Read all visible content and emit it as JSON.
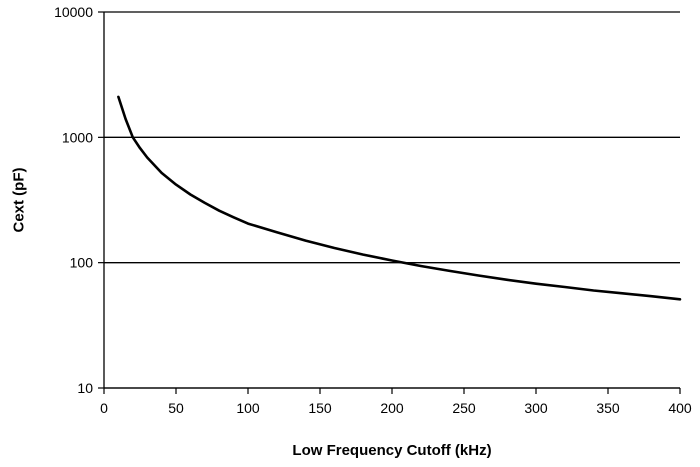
{
  "chart_data": {
    "type": "line",
    "title": "",
    "xlabel": "Low Frequency Cutoff (kHz)",
    "ylabel": "Cext (pF)",
    "xlim": [
      0,
      400
    ],
    "ylim": [
      10,
      10000
    ],
    "y_scale": "log",
    "x_ticks": [
      0,
      50,
      100,
      150,
      200,
      250,
      300,
      350,
      400
    ],
    "x_tick_labels": [
      "0",
      "50",
      "100",
      "150",
      "200",
      "250",
      "300",
      "350",
      "400"
    ],
    "y_ticks": [
      10,
      100,
      1000,
      10000
    ],
    "y_tick_labels": [
      "10",
      "100",
      "1000",
      "10000"
    ],
    "grid": "horizontal major gridlines",
    "legend": "none",
    "line_color": "#000000",
    "series": [
      {
        "x": [
          10,
          15,
          20,
          25,
          30,
          40,
          50,
          60,
          70,
          80,
          90,
          100,
          120,
          140,
          160,
          180,
          200,
          220,
          240,
          260,
          280,
          300,
          320,
          340,
          360,
          380,
          400
        ],
        "values": [
          2100,
          1400,
          1000,
          820,
          690,
          520,
          420,
          350,
          300,
          260,
          230,
          205,
          175,
          150,
          131,
          116,
          104,
          94,
          86,
          79,
          73,
          68,
          64,
          60,
          57,
          54,
          51
        ]
      }
    ]
  }
}
